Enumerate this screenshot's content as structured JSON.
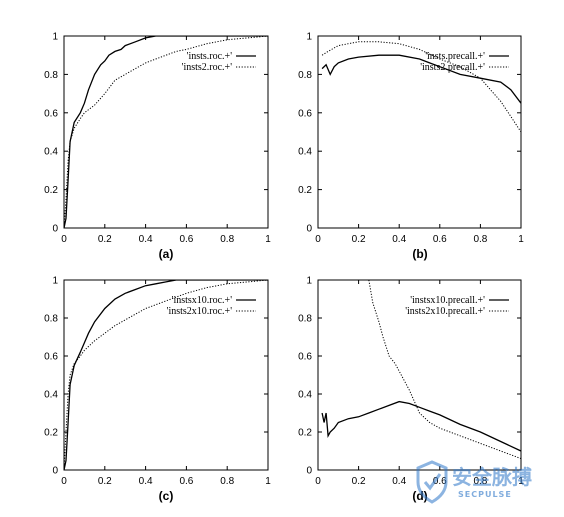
{
  "chart_data": [
    {
      "type": "line",
      "caption": "(a)",
      "xlim": [
        0,
        1
      ],
      "ylim": [
        0,
        1
      ],
      "xticks": [
        "0",
        "0.2",
        "0.4",
        "0.6",
        "0.8",
        "1"
      ],
      "yticks": [
        "0",
        "0.2",
        "0.4",
        "0.6",
        "0.8",
        "1"
      ],
      "legend_position": "top-right",
      "series": [
        {
          "name": "'insts.roc.+'",
          "style": "solid",
          "x": [
            0,
            0.01,
            0.02,
            0.03,
            0.05,
            0.08,
            0.1,
            0.12,
            0.15,
            0.18,
            0.2,
            0.22,
            0.25,
            0.28,
            0.3,
            0.35,
            0.4,
            0.45,
            0.5,
            0.55,
            0.6,
            1.0
          ],
          "y": [
            0,
            0.05,
            0.25,
            0.45,
            0.55,
            0.6,
            0.65,
            0.72,
            0.8,
            0.85,
            0.87,
            0.9,
            0.92,
            0.93,
            0.95,
            0.97,
            0.99,
            1.0,
            1.0,
            1.0,
            1.0,
            1.0
          ]
        },
        {
          "name": "'insts2.roc.+'",
          "style": "dotted",
          "x": [
            0,
            0.01,
            0.02,
            0.03,
            0.05,
            0.08,
            0.1,
            0.15,
            0.2,
            0.25,
            0.3,
            0.35,
            0.4,
            0.45,
            0.5,
            0.55,
            0.6,
            0.7,
            0.8,
            0.9,
            1.0
          ],
          "y": [
            0,
            0.15,
            0.35,
            0.45,
            0.52,
            0.57,
            0.6,
            0.64,
            0.7,
            0.77,
            0.8,
            0.83,
            0.86,
            0.88,
            0.9,
            0.92,
            0.93,
            0.96,
            0.98,
            0.99,
            1.0
          ]
        }
      ]
    },
    {
      "type": "line",
      "caption": "(b)",
      "xlim": [
        0,
        1
      ],
      "ylim": [
        0,
        1
      ],
      "xticks": [
        "0",
        "0.2",
        "0.4",
        "0.6",
        "0.8",
        "1"
      ],
      "yticks": [
        "0",
        "0.2",
        "0.4",
        "0.6",
        "0.8",
        "1"
      ],
      "legend_position": "top-right",
      "series": [
        {
          "name": "'insts.precall.+'",
          "style": "solid",
          "x": [
            0.02,
            0.04,
            0.06,
            0.08,
            0.1,
            0.15,
            0.2,
            0.3,
            0.4,
            0.5,
            0.55,
            0.6,
            0.7,
            0.8,
            0.9,
            0.95,
            1.0
          ],
          "y": [
            0.83,
            0.85,
            0.8,
            0.84,
            0.86,
            0.88,
            0.89,
            0.9,
            0.9,
            0.88,
            0.86,
            0.84,
            0.8,
            0.78,
            0.76,
            0.72,
            0.65
          ]
        },
        {
          "name": "'insts2.precall.+'",
          "style": "dotted",
          "x": [
            0.02,
            0.05,
            0.1,
            0.2,
            0.3,
            0.4,
            0.5,
            0.6,
            0.7,
            0.8,
            0.85,
            0.9,
            0.95,
            1.0
          ],
          "y": [
            0.9,
            0.92,
            0.95,
            0.97,
            0.97,
            0.96,
            0.93,
            0.88,
            0.84,
            0.78,
            0.72,
            0.66,
            0.58,
            0.5
          ]
        }
      ]
    },
    {
      "type": "line",
      "caption": "(c)",
      "xlim": [
        0,
        1
      ],
      "ylim": [
        0,
        1
      ],
      "xticks": [
        "0",
        "0.2",
        "0.4",
        "0.6",
        "0.8",
        "1"
      ],
      "yticks": [
        "0",
        "0.2",
        "0.4",
        "0.6",
        "0.8",
        "1"
      ],
      "legend_position": "top-right",
      "series": [
        {
          "name": "'instsx10.roc.+'",
          "style": "solid",
          "x": [
            0,
            0.01,
            0.02,
            0.03,
            0.05,
            0.08,
            0.1,
            0.12,
            0.15,
            0.2,
            0.25,
            0.3,
            0.35,
            0.4,
            0.45,
            0.5,
            0.55,
            0.6,
            1.0
          ],
          "y": [
            0,
            0.05,
            0.25,
            0.45,
            0.55,
            0.62,
            0.67,
            0.72,
            0.78,
            0.85,
            0.9,
            0.93,
            0.95,
            0.97,
            0.98,
            0.99,
            1.0,
            1.0,
            1.0
          ]
        },
        {
          "name": "'insts2x10.roc.+'",
          "style": "dotted",
          "x": [
            0,
            0.01,
            0.02,
            0.03,
            0.05,
            0.08,
            0.1,
            0.15,
            0.2,
            0.25,
            0.3,
            0.35,
            0.4,
            0.45,
            0.5,
            0.55,
            0.6,
            0.7,
            0.8,
            0.9,
            1.0
          ],
          "y": [
            0,
            0.2,
            0.4,
            0.5,
            0.56,
            0.6,
            0.63,
            0.68,
            0.72,
            0.76,
            0.79,
            0.82,
            0.85,
            0.87,
            0.89,
            0.91,
            0.93,
            0.96,
            0.98,
            0.99,
            1.0
          ]
        }
      ]
    },
    {
      "type": "line",
      "caption": "(d)",
      "xlim": [
        0,
        1
      ],
      "ylim": [
        0,
        1
      ],
      "xticks": [
        "0",
        "0.2",
        "0.4",
        "0.6",
        "0.8",
        "1"
      ],
      "yticks": [
        "0",
        "0.2",
        "0.4",
        "0.6",
        "0.8",
        "1"
      ],
      "legend_position": "top-right",
      "series": [
        {
          "name": "'instsx10.precall.+'",
          "style": "solid",
          "x": [
            0.02,
            0.03,
            0.04,
            0.05,
            0.06,
            0.08,
            0.1,
            0.15,
            0.2,
            0.25,
            0.3,
            0.35,
            0.4,
            0.45,
            0.5,
            0.55,
            0.6,
            0.7,
            0.8,
            0.9,
            1.0
          ],
          "y": [
            0.3,
            0.25,
            0.3,
            0.18,
            0.2,
            0.22,
            0.25,
            0.27,
            0.28,
            0.3,
            0.32,
            0.34,
            0.36,
            0.35,
            0.33,
            0.31,
            0.29,
            0.24,
            0.2,
            0.15,
            0.1
          ]
        },
        {
          "name": "'insts2x10.precall.+'",
          "style": "dotted",
          "x": [
            0.25,
            0.27,
            0.3,
            0.32,
            0.35,
            0.38,
            0.4,
            0.42,
            0.45,
            0.5,
            0.55,
            0.6,
            0.7,
            0.8,
            0.9,
            1.0
          ],
          "y": [
            1.0,
            0.88,
            0.78,
            0.7,
            0.6,
            0.56,
            0.52,
            0.48,
            0.42,
            0.3,
            0.25,
            0.22,
            0.18,
            0.14,
            0.1,
            0.06
          ]
        }
      ]
    }
  ],
  "watermark": {
    "text": "安全脉搏",
    "sub": "SECPULSE"
  }
}
